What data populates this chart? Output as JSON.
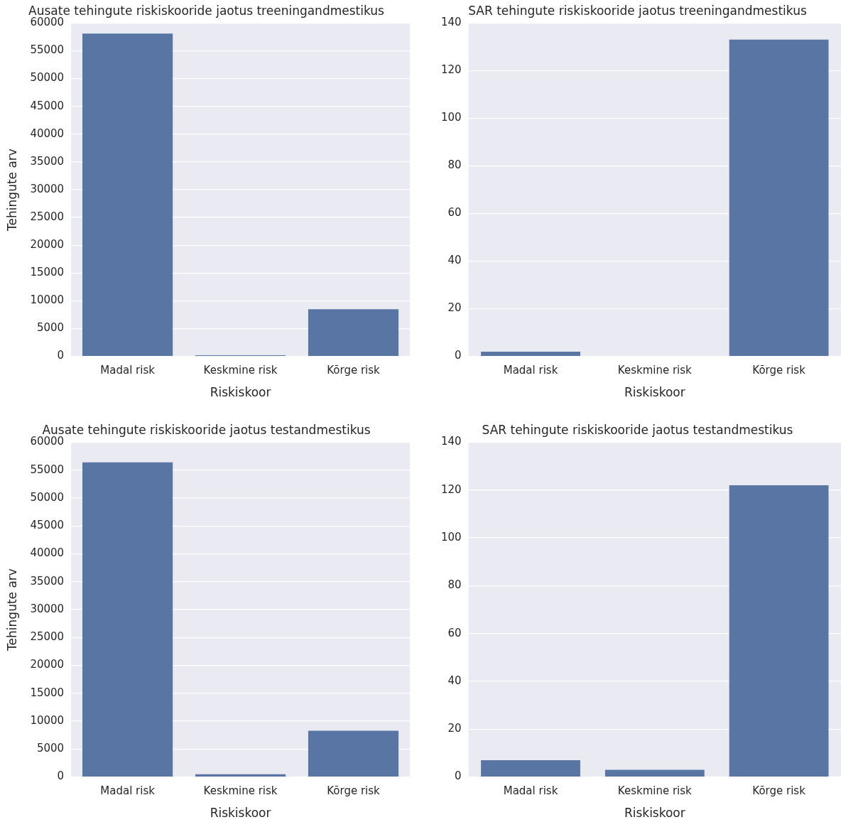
{
  "chart_data": [
    {
      "type": "bar",
      "title": "Ausate tehingute riskiskooride jaotus treeningandmestikus",
      "xlabel": "Riskiskoor",
      "ylabel": "Tehingute arv",
      "categories": [
        "Madal risk",
        "Keskmine risk",
        "Kõrge risk"
      ],
      "values": [
        58100,
        200,
        8500
      ],
      "color": "#5975a4",
      "ylim": [
        0,
        60000
      ],
      "yticks": [
        0,
        5000,
        10000,
        15000,
        20000,
        25000,
        30000,
        35000,
        40000,
        45000,
        50000,
        55000,
        60000
      ],
      "grid": "y"
    },
    {
      "type": "bar",
      "title": "SAR tehingute riskiskooride jaotus treeningandmestikus",
      "xlabel": "Riskiskoor",
      "categories": [
        "Madal risk",
        "Keskmine risk",
        "Kõrge risk"
      ],
      "values": [
        2,
        0,
        133
      ],
      "color": "#5975a4",
      "ylim": [
        0,
        140
      ],
      "yticks": [
        0,
        20,
        40,
        60,
        80,
        100,
        120,
        140
      ],
      "grid": "y"
    },
    {
      "type": "bar",
      "title": "Ausate tehingute riskiskooride jaotus testandmestikus",
      "xlabel": "Riskiskoor",
      "ylabel": "Tehingute arv",
      "categories": [
        "Madal risk",
        "Keskmine risk",
        "Kõrge risk"
      ],
      "values": [
        56400,
        500,
        8300
      ],
      "color": "#5975a4",
      "ylim": [
        0,
        60000
      ],
      "yticks": [
        0,
        5000,
        10000,
        15000,
        20000,
        25000,
        30000,
        35000,
        40000,
        45000,
        50000,
        55000,
        60000
      ],
      "grid": "y"
    },
    {
      "type": "bar",
      "title": "SAR tehingute riskiskooride jaotus testandmestikus",
      "xlabel": "Riskiskoor",
      "categories": [
        "Madal risk",
        "Keskmine risk",
        "Kõrge risk"
      ],
      "values": [
        7,
        3,
        122
      ],
      "color": "#5975a4",
      "ylim": [
        0,
        140
      ],
      "yticks": [
        0,
        20,
        40,
        60,
        80,
        100,
        120,
        140
      ],
      "grid": "y"
    }
  ]
}
